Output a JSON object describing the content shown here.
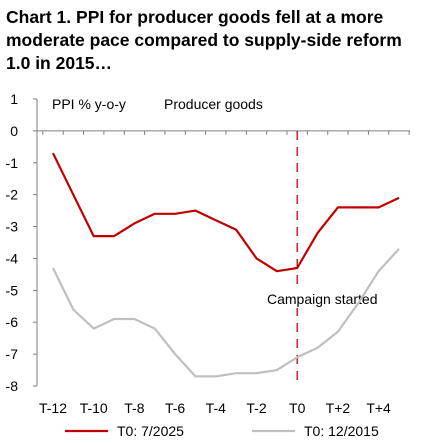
{
  "title": "Chart 1. PPI for producer goods fell at a more moderate pace compared to supply-side reform 1.0 in 2015…",
  "chart_data": {
    "type": "line",
    "title": "Chart 1. PPI for producer goods fell at a more moderate pace compared to supply-side reform 1.0 in 2015…",
    "ylabel": "PPI % y-o-y",
    "subtitle": "Producer goods",
    "ylim": [
      -8,
      1
    ],
    "yticks": [
      1,
      0,
      -1,
      -2,
      -3,
      -4,
      -5,
      -6,
      -7,
      -8
    ],
    "x": [
      "T-12",
      "T-11",
      "T-10",
      "T-9",
      "T-8",
      "T-7",
      "T-6",
      "T-5",
      "T-4",
      "T-3",
      "T-2",
      "T-1",
      "T0",
      "T+1",
      "T+2",
      "T+3",
      "T+4",
      "T+5"
    ],
    "xtick_labels": [
      "T-12",
      "T-10",
      "T-8",
      "T-6",
      "T-4",
      "T-2",
      "T0",
      "T+2",
      "T+4"
    ],
    "series": [
      {
        "name": "T0: 7/2025",
        "color": "#c00000",
        "values": [
          -0.7,
          -2.0,
          -3.3,
          -3.3,
          -2.9,
          -2.6,
          -2.6,
          -2.5,
          -2.8,
          -3.1,
          -4.0,
          -4.4,
          -4.3,
          -3.2,
          -2.4,
          -2.4,
          -2.4,
          -2.1
        ]
      },
      {
        "name": "T0: 12/2015",
        "color": "#bfbfbf",
        "values": [
          -4.3,
          -5.6,
          -6.2,
          -5.9,
          -5.9,
          -6.2,
          -7.0,
          -7.7,
          -7.7,
          -7.6,
          -7.6,
          -7.5,
          -7.1,
          -6.8,
          -6.3,
          -5.4,
          -4.4,
          -3.7
        ]
      }
    ],
    "annotation": {
      "text": "Campaign started",
      "x": "T0",
      "color": "#c00000"
    },
    "grid": false,
    "legend_position": "bottom"
  }
}
